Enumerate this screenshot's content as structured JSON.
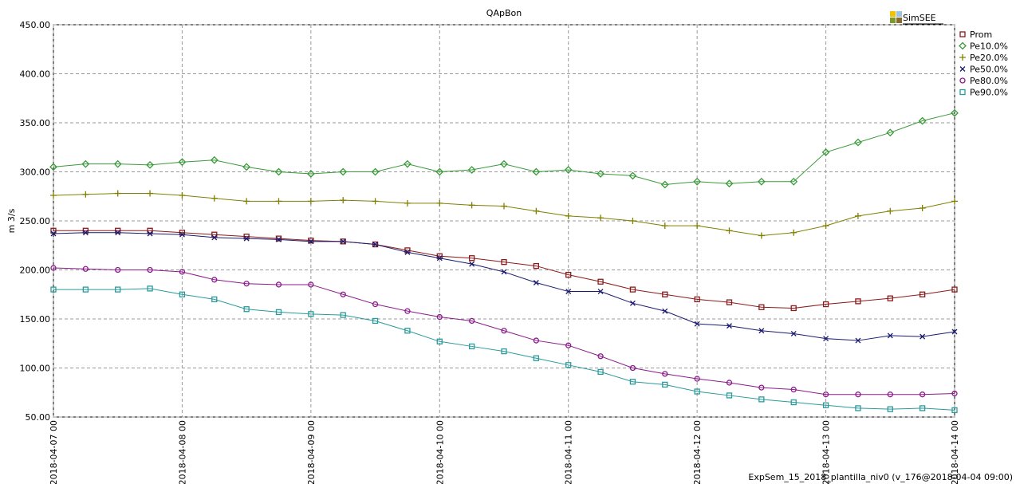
{
  "chart_data": {
    "type": "line",
    "title": "QApBon",
    "y_label": "m 3/s",
    "brand": "SimSEE",
    "footer": "ExpSem_15_2018_plantilla_niv0 (v_176@2018-04-04 09:00)",
    "x": [
      "2018-04-07 00",
      "2018-04-07 06",
      "2018-04-07 12",
      "2018-04-07 18",
      "2018-04-08 00",
      "2018-04-08 06",
      "2018-04-08 12",
      "2018-04-08 18",
      "2018-04-09 00",
      "2018-04-09 06",
      "2018-04-09 12",
      "2018-04-09 18",
      "2018-04-10 00",
      "2018-04-10 06",
      "2018-04-10 12",
      "2018-04-10 18",
      "2018-04-11 00",
      "2018-04-11 06",
      "2018-04-11 12",
      "2018-04-11 18",
      "2018-04-12 00",
      "2018-04-12 06",
      "2018-04-12 12",
      "2018-04-12 18",
      "2018-04-13 00",
      "2018-04-13 06",
      "2018-04-13 12",
      "2018-04-13 18",
      "2018-04-14 00"
    ],
    "xlim": [
      "2018-04-07 00",
      "2018-04-14 00"
    ],
    "xticks": [
      "2018-04-07 00",
      "2018-04-08 00",
      "2018-04-09 00",
      "2018-04-10 00",
      "2018-04-11 00",
      "2018-04-12 00",
      "2018-04-13 00",
      "2018-04-14 00"
    ],
    "ylim": [
      50,
      450
    ],
    "yticks": [
      {
        "value": 50,
        "label": "50.00"
      },
      {
        "value": 100,
        "label": "100.00"
      },
      {
        "value": 150,
        "label": "150.00"
      },
      {
        "value": 200,
        "label": "200.00"
      },
      {
        "value": 250,
        "label": "250.00"
      },
      {
        "value": 300,
        "label": "300.00"
      },
      {
        "value": 350,
        "label": "350.00"
      },
      {
        "value": 400,
        "label": "400.00"
      },
      {
        "value": 450,
        "label": "450.00"
      }
    ],
    "grid": true,
    "legend": "right",
    "series": [
      {
        "name": "Prom",
        "color": "#8b1a1a",
        "marker": "square",
        "values": [
          240,
          240,
          240,
          240,
          238,
          236,
          234,
          232,
          230,
          229,
          226,
          220,
          214,
          212,
          208,
          204,
          195,
          188,
          180,
          175,
          170,
          167,
          162,
          161,
          165,
          168,
          171,
          175,
          180
        ]
      },
      {
        "name": "Pe10.0%",
        "color": "#3a9a3a",
        "marker": "diamond",
        "values": [
          305,
          308,
          308,
          307,
          310,
          312,
          305,
          300,
          298,
          300,
          300,
          308,
          300,
          302,
          308,
          300,
          302,
          298,
          296,
          287,
          290,
          288,
          290,
          290,
          320,
          330,
          340,
          352,
          360
        ]
      },
      {
        "name": "Pe20.0%",
        "color": "#808000",
        "marker": "plus",
        "values": [
          276,
          277,
          278,
          278,
          276,
          273,
          270,
          270,
          270,
          271,
          270,
          268,
          268,
          266,
          265,
          260,
          255,
          253,
          250,
          245,
          245,
          240,
          235,
          238,
          245,
          255,
          260,
          263,
          270
        ]
      },
      {
        "name": "Pe50.0%",
        "color": "#1a1a6e",
        "marker": "cross",
        "values": [
          237,
          238,
          238,
          237,
          236,
          233,
          232,
          231,
          229,
          229,
          226,
          218,
          212,
          206,
          198,
          187,
          178,
          178,
          166,
          158,
          145,
          143,
          138,
          135,
          130,
          128,
          133,
          132,
          137
        ]
      },
      {
        "name": "Pe80.0%",
        "color": "#8b1a8b",
        "marker": "circle",
        "values": [
          202,
          201,
          200,
          200,
          198,
          190,
          186,
          185,
          185,
          175,
          165,
          158,
          152,
          148,
          138,
          128,
          123,
          112,
          100,
          94,
          89,
          85,
          80,
          78,
          73,
          73,
          73,
          73,
          74
        ]
      },
      {
        "name": "Pe90.0%",
        "color": "#2a9a9a",
        "marker": "square",
        "values": [
          180,
          180,
          180,
          181,
          175,
          170,
          160,
          157,
          155,
          154,
          148,
          138,
          127,
          122,
          117,
          110,
          103,
          96,
          86,
          83,
          76,
          72,
          68,
          65,
          62,
          59,
          58,
          59,
          57
        ]
      }
    ]
  }
}
